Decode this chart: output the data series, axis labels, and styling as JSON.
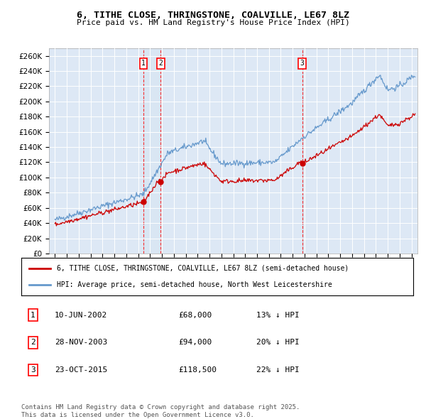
{
  "title": "6, TITHE CLOSE, THRINGSTONE, COALVILLE, LE67 8LZ",
  "subtitle": "Price paid vs. HM Land Registry's House Price Index (HPI)",
  "legend_line1": "6, TITHE CLOSE, THRINGSTONE, COALVILLE, LE67 8LZ (semi-detached house)",
  "legend_line2": "HPI: Average price, semi-detached house, North West Leicestershire",
  "footer": "Contains HM Land Registry data © Crown copyright and database right 2025.\nThis data is licensed under the Open Government Licence v3.0.",
  "transactions": [
    {
      "label": "1",
      "date": "10-JUN-2002",
      "price": 68000,
      "hpi_note": "13% ↓ HPI",
      "x": 2002.44
    },
    {
      "label": "2",
      "date": "28-NOV-2003",
      "price": 94000,
      "hpi_note": "20% ↓ HPI",
      "x": 2003.9
    },
    {
      "label": "3",
      "date": "23-OCT-2015",
      "price": 118500,
      "hpi_note": "22% ↓ HPI",
      "x": 2015.81
    }
  ],
  "price_color": "#cc0000",
  "hpi_color": "#6699cc",
  "grid_color": "#cccccc",
  "background_color": "#ffffff",
  "ylim": [
    0,
    270000
  ],
  "yticks": [
    0,
    20000,
    40000,
    60000,
    80000,
    100000,
    120000,
    140000,
    160000,
    180000,
    200000,
    220000,
    240000,
    260000
  ],
  "xlim_start": 1994.5,
  "xlim_end": 2025.5
}
